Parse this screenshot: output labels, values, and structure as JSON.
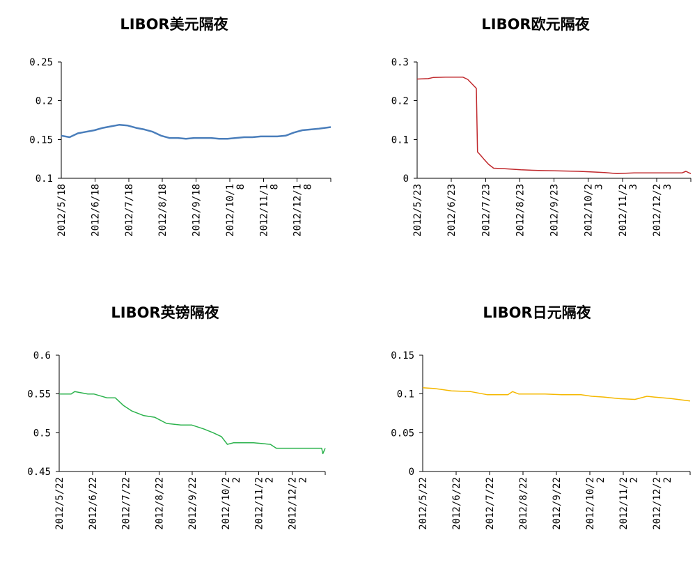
{
  "chart_data": [
    {
      "type": "line",
      "title": "LIBOR美元隔夜",
      "color": "#4a7ebb",
      "ylim": [
        0.1,
        0.25
      ],
      "yticks": [
        "0.1",
        "0.15",
        "0.2",
        "0.25"
      ],
      "ytick_values": [
        0.1,
        0.15,
        0.2,
        0.25
      ],
      "xticks": [
        "2012/5/18",
        "2012/6/18",
        "2012/7/18",
        "2012/8/18",
        "2012/9/18",
        "2012/10/1\n8",
        "2012/11/1\n8",
        "2012/12/1\n8"
      ],
      "xlim": [
        "2012/5/18",
        "2012/12/31"
      ],
      "grid": false,
      "series": [
        {
          "x": [
            "2012/5/18",
            "2012/5/25",
            "2012/6/1",
            "2012/6/8",
            "2012/6/15",
            "2012/6/22",
            "2012/6/29",
            "2012/7/6",
            "2012/7/13",
            "2012/7/20",
            "2012/7/27",
            "2012/8/3",
            "2012/8/10",
            "2012/8/17",
            "2012/8/24",
            "2012/8/31",
            "2012/9/7",
            "2012/9/14",
            "2012/9/21",
            "2012/9/28",
            "2012/10/5",
            "2012/10/12",
            "2012/10/19",
            "2012/10/26",
            "2012/11/2",
            "2012/11/9",
            "2012/11/16",
            "2012/11/23",
            "2012/11/30",
            "2012/12/7",
            "2012/12/14",
            "2012/12/21",
            "2012/12/31"
          ],
          "values": [
            0.155,
            0.153,
            0.158,
            0.16,
            0.162,
            0.165,
            0.167,
            0.169,
            0.168,
            0.165,
            0.163,
            0.16,
            0.155,
            0.152,
            0.152,
            0.151,
            0.152,
            0.152,
            0.152,
            0.151,
            0.151,
            0.152,
            0.153,
            0.153,
            0.154,
            0.154,
            0.154,
            0.155,
            0.159,
            0.162,
            0.163,
            0.164,
            0.166
          ]
        }
      ]
    },
    {
      "type": "line",
      "title": "LIBOR欧元隔夜",
      "color": "#c0282c",
      "ylim": [
        0,
        0.3
      ],
      "yticks": [
        "0",
        "0.1",
        "0.2",
        "0.3"
      ],
      "ytick_values": [
        0,
        0.1,
        0.2,
        0.3
      ],
      "xticks": [
        "2012/5/23",
        "2012/6/23",
        "2012/7/23",
        "2012/8/23",
        "2012/9/23",
        "2012/10/2\n3",
        "2012/11/2\n3",
        "2012/12/2\n3"
      ],
      "xlim": [
        "2012/5/23",
        "2012/12/31"
      ],
      "grid": false,
      "series": [
        {
          "x": [
            "2012/5/23",
            "2012/6/1",
            "2012/6/5",
            "2012/6/15",
            "2012/6/29",
            "2012/7/3",
            "2012/7/10",
            "2012/7/11",
            "2012/7/13",
            "2012/7/16",
            "2012/7/18",
            "2012/7/20",
            "2012/7/24",
            "2012/8/1",
            "2012/8/15",
            "2012/9/1",
            "2012/9/15",
            "2012/10/1",
            "2012/10/15",
            "2012/10/22",
            "2012/11/1",
            "2012/11/15",
            "2012/12/1",
            "2012/12/15",
            "2012/12/24",
            "2012/12/27",
            "2012/12/31"
          ],
          "values": [
            0.256,
            0.257,
            0.26,
            0.261,
            0.261,
            0.255,
            0.232,
            0.068,
            0.061,
            0.05,
            0.043,
            0.036,
            0.026,
            0.025,
            0.022,
            0.02,
            0.019,
            0.018,
            0.016,
            0.015,
            0.012,
            0.014,
            0.014,
            0.014,
            0.014,
            0.018,
            0.012
          ]
        }
      ]
    },
    {
      "type": "line",
      "title": "LIBOR英镑隔夜",
      "color": "#2bb24c",
      "ylim": [
        0.45,
        0.6
      ],
      "yticks": [
        "0.45",
        "0.5",
        "0.55",
        "0.6"
      ],
      "ytick_values": [
        0.45,
        0.5,
        0.55,
        0.6
      ],
      "xticks": [
        "2012/5/22",
        "2012/6/22",
        "2012/7/22",
        "2012/8/22",
        "2012/9/22",
        "2012/10/2\n2",
        "2012/11/2\n2",
        "2012/12/2\n2"
      ],
      "xlim": [
        "2012/5/22",
        "2012/12/31"
      ],
      "grid": false,
      "series": [
        {
          "x": [
            "2012/5/22",
            "2012/6/1",
            "2012/6/4",
            "2012/6/15",
            "2012/6/20",
            "2012/7/1",
            "2012/7/8",
            "2012/7/15",
            "2012/7/22",
            "2012/8/1",
            "2012/8/10",
            "2012/8/20",
            "2012/9/1",
            "2012/9/10",
            "2012/9/20",
            "2012/9/28",
            "2012/10/5",
            "2012/10/10",
            "2012/10/15",
            "2012/11/1",
            "2012/11/15",
            "2012/11/20",
            "2012/12/1",
            "2012/12/15",
            "2012/12/20",
            "2012/12/28",
            "2012/12/29",
            "2012/12/31"
          ],
          "values": [
            0.55,
            0.55,
            0.553,
            0.55,
            0.55,
            0.545,
            0.545,
            0.535,
            0.528,
            0.522,
            0.52,
            0.512,
            0.51,
            0.51,
            0.505,
            0.5,
            0.495,
            0.485,
            0.487,
            0.487,
            0.485,
            0.48,
            0.48,
            0.48,
            0.48,
            0.48,
            0.473,
            0.48
          ]
        }
      ]
    },
    {
      "type": "line",
      "title": "LIBOR日元隔夜",
      "color": "#f5b800",
      "ylim": [
        0,
        0.15
      ],
      "yticks": [
        "0",
        "0.05",
        "0.1",
        "0.15"
      ],
      "ytick_values": [
        0,
        0.05,
        0.1,
        0.15
      ],
      "xticks": [
        "2012/5/22",
        "2012/6/22",
        "2012/7/22",
        "2012/8/22",
        "2012/9/22",
        "2012/10/2\n2",
        "2012/11/2\n2",
        "2012/12/2\n2"
      ],
      "xlim": [
        "2012/5/22",
        "2012/12/31"
      ],
      "grid": false,
      "series": [
        {
          "x": [
            "2012/5/22",
            "2012/6/1",
            "2012/6/15",
            "2012/7/1",
            "2012/7/15",
            "2012/8/1",
            "2012/8/5",
            "2012/8/10",
            "2012/8/20",
            "2012/9/1",
            "2012/9/15",
            "2012/10/1",
            "2012/10/10",
            "2012/10/20",
            "2012/11/1",
            "2012/11/15",
            "2012/11/25",
            "2012/12/1",
            "2012/12/15",
            "2012/12/31"
          ],
          "values": [
            0.108,
            0.107,
            0.104,
            0.103,
            0.099,
            0.099,
            0.103,
            0.1,
            0.1,
            0.1,
            0.099,
            0.099,
            0.097,
            0.096,
            0.094,
            0.093,
            0.097,
            0.096,
            0.094,
            0.091
          ]
        }
      ]
    }
  ]
}
